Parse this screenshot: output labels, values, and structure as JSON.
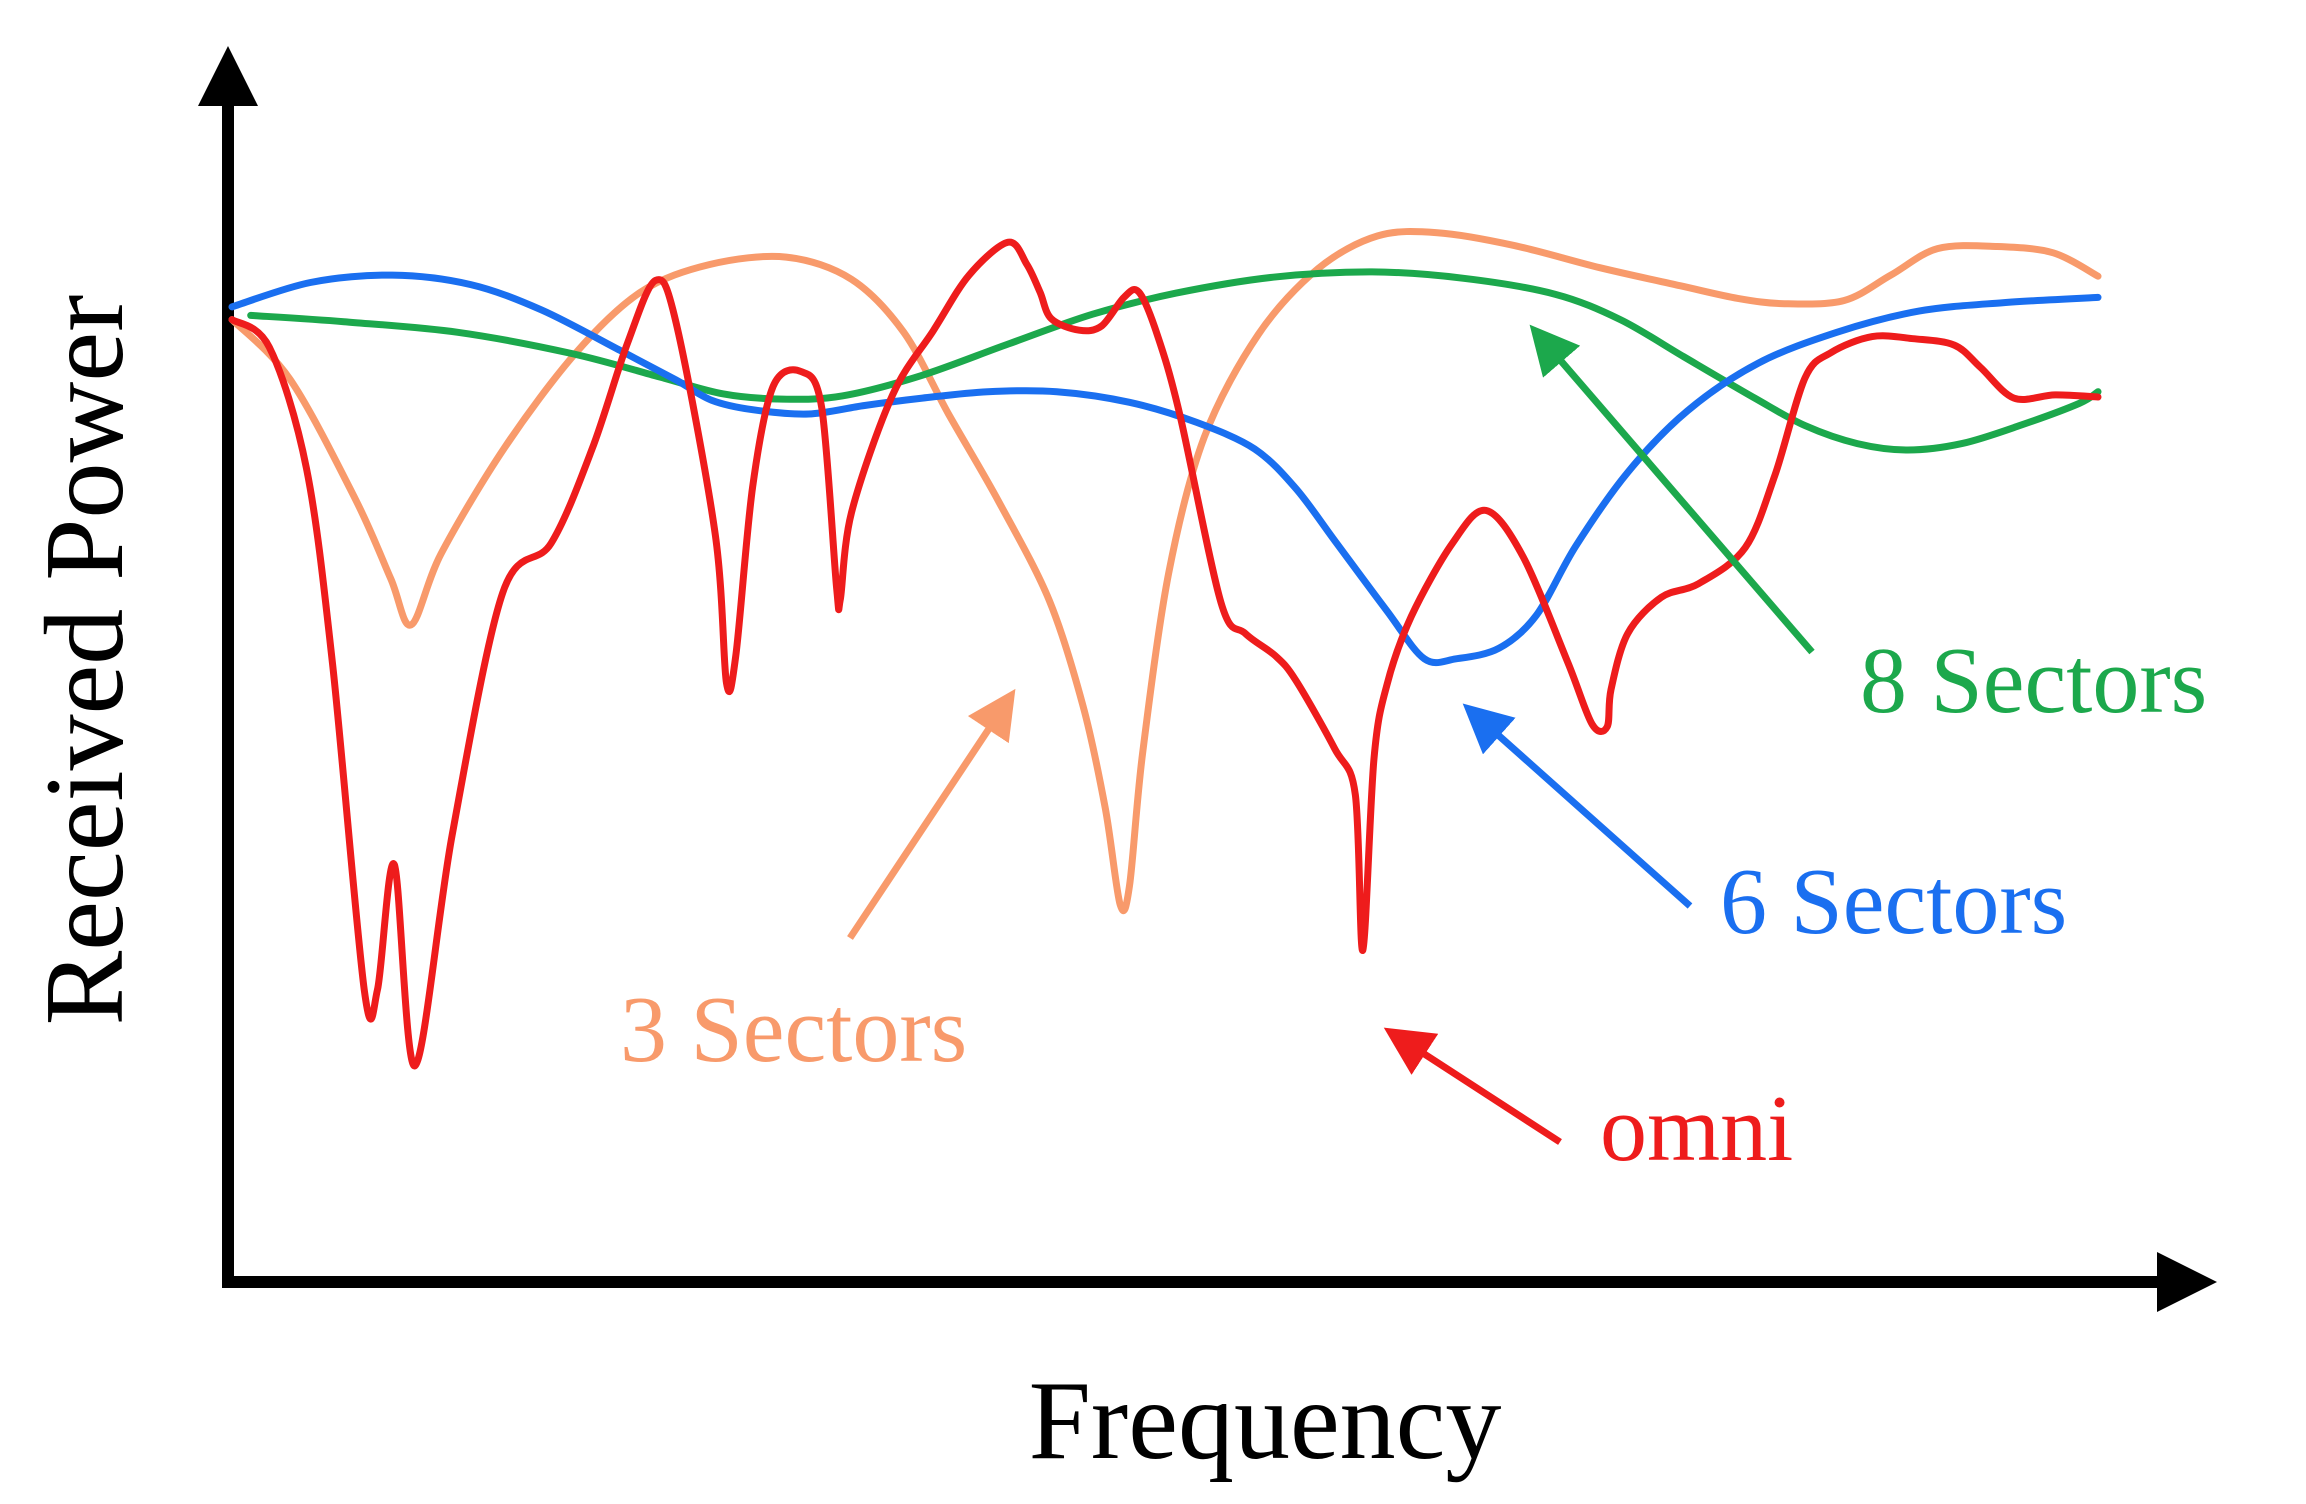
{
  "chart_data": {
    "type": "line",
    "title": "",
    "xlabel": "Frequency",
    "ylabel": "Received Power",
    "xlim": [
      0,
      100
    ],
    "ylim": [
      0,
      100
    ],
    "grid": false,
    "legend": "inline annotations with arrows",
    "series": [
      {
        "name": "omni",
        "color": "#ee1c1c",
        "points": [
          [
            0,
            87.3
          ],
          [
            2,
            84.7
          ],
          [
            4,
            73.2
          ],
          [
            5.4,
            54.6
          ],
          [
            7.1,
            23.9
          ],
          [
            7.8,
            24.1
          ],
          [
            8.7,
            35.9
          ],
          [
            9.8,
            16.9
          ],
          [
            11.8,
            38.7
          ],
          [
            14.5,
            61.5
          ],
          [
            17.1,
            66.2
          ],
          [
            19.3,
            75.1
          ],
          [
            21.2,
            85.1
          ],
          [
            22.7,
            91.0
          ],
          [
            23.8,
            87.0
          ],
          [
            25.9,
            67.0
          ],
          [
            26.5,
            53.0
          ],
          [
            27.0,
            55.6
          ],
          [
            27.9,
            71.5
          ],
          [
            29.0,
            81.0
          ],
          [
            30.5,
            82.4
          ],
          [
            31.6,
            79.0
          ],
          [
            32.4,
            62.0
          ],
          [
            32.6,
            60.9
          ],
          [
            33.2,
            69.1
          ],
          [
            35.4,
            80.2
          ],
          [
            37.6,
            86.3
          ],
          [
            39.5,
            91.5
          ],
          [
            41.6,
            94.6
          ],
          [
            42.6,
            92.5
          ],
          [
            43.3,
            89.9
          ],
          [
            43.9,
            87.4
          ],
          [
            45.4,
            86.3
          ],
          [
            46.6,
            86.7
          ],
          [
            47.8,
            89.4
          ],
          [
            48.6,
            89.9
          ],
          [
            49.6,
            85.8
          ],
          [
            50.8,
            78.3
          ],
          [
            53.0,
            60.6
          ],
          [
            54.3,
            57.7
          ],
          [
            55.9,
            55.6
          ],
          [
            57.0,
            53.3
          ],
          [
            59.1,
            46.8
          ],
          [
            60.2,
            42.5
          ],
          [
            60.6,
            27.8
          ],
          [
            61.2,
            45.9
          ],
          [
            61.9,
            52.9
          ],
          [
            63.2,
            59.3
          ],
          [
            65.4,
            66.2
          ],
          [
            67.2,
            69.3
          ],
          [
            69.2,
            64.9
          ],
          [
            71.6,
            54.9
          ],
          [
            72.9,
            49.1
          ],
          [
            73.7,
            48.9
          ],
          [
            73.9,
            52.4
          ],
          [
            74.8,
            57.7
          ],
          [
            76.6,
            61.1
          ],
          [
            78.6,
            62.4
          ],
          [
            81.1,
            65.8
          ],
          [
            82.7,
            72.7
          ],
          [
            84.3,
            81.8
          ],
          [
            85.7,
            84.2
          ],
          [
            87.9,
            85.7
          ],
          [
            90.1,
            85.5
          ],
          [
            92.3,
            84.9
          ],
          [
            93.7,
            82.8
          ],
          [
            95.5,
            79.9
          ],
          [
            97.7,
            80.2
          ],
          [
            100,
            80.0
          ]
        ]
      },
      {
        "name": "3 Sectors",
        "color": "#f89a6b",
        "points": [
          [
            0,
            87.3
          ],
          [
            3.1,
            81.7
          ],
          [
            6.6,
            70.4
          ],
          [
            8.5,
            62.9
          ],
          [
            9.6,
            58.5
          ],
          [
            11.2,
            65.2
          ],
          [
            14.6,
            75.2
          ],
          [
            18.4,
            84.1
          ],
          [
            21.9,
            89.9
          ],
          [
            25.6,
            92.5
          ],
          [
            29.7,
            93.2
          ],
          [
            33.2,
            91.1
          ],
          [
            36.0,
            86.1
          ],
          [
            38.4,
            78.4
          ],
          [
            41.1,
            70.1
          ],
          [
            43.8,
            60.8
          ],
          [
            45.6,
            50.9
          ],
          [
            46.8,
            41.2
          ],
          [
            47.6,
            32.1
          ],
          [
            48.1,
            33.9
          ],
          [
            48.8,
            46.4
          ],
          [
            50.2,
            63.4
          ],
          [
            52.1,
            76.2
          ],
          [
            55.0,
            85.9
          ],
          [
            58.2,
            92.1
          ],
          [
            61.4,
            95.2
          ],
          [
            64.6,
            95.5
          ],
          [
            68.7,
            94.3
          ],
          [
            73.3,
            92.2
          ],
          [
            77.6,
            90.5
          ],
          [
            80.7,
            89.3
          ],
          [
            83.2,
            88.8
          ],
          [
            86.4,
            89.1
          ],
          [
            88.9,
            91.5
          ],
          [
            91.4,
            94.0
          ],
          [
            94.6,
            94.2
          ],
          [
            97.6,
            93.6
          ],
          [
            100,
            91.4
          ]
        ]
      },
      {
        "name": "6 Sectors",
        "color": "#1a6ff0",
        "points": [
          [
            0,
            88.5
          ],
          [
            4.2,
            90.8
          ],
          [
            8.6,
            91.5
          ],
          [
            12.8,
            90.6
          ],
          [
            16.6,
            88.2
          ],
          [
            20.8,
            84.4
          ],
          [
            23.8,
            81.6
          ],
          [
            25.7,
            79.7
          ],
          [
            27.9,
            78.8
          ],
          [
            30.9,
            78.4
          ],
          [
            33.9,
            79.2
          ],
          [
            37.0,
            79.9
          ],
          [
            40.5,
            80.5
          ],
          [
            44.2,
            80.5
          ],
          [
            48.1,
            79.5
          ],
          [
            51.7,
            77.6
          ],
          [
            54.8,
            75.1
          ],
          [
            57.0,
            71.4
          ],
          [
            59.2,
            66.2
          ],
          [
            61.9,
            59.8
          ],
          [
            63.9,
            55.3
          ],
          [
            65.6,
            55.3
          ],
          [
            67.9,
            56.3
          ],
          [
            69.9,
            59.4
          ],
          [
            72.0,
            65.9
          ],
          [
            74.8,
            72.9
          ],
          [
            78.0,
            78.7
          ],
          [
            81.8,
            83.2
          ],
          [
            86.0,
            86.1
          ],
          [
            90.4,
            88.1
          ],
          [
            94.9,
            88.9
          ],
          [
            100,
            89.4
          ]
        ]
      },
      {
        "name": "8 Sectors",
        "color": "#1ca84c",
        "points": [
          [
            1.0,
            87.7
          ],
          [
            6.0,
            87.1
          ],
          [
            12.1,
            86.1
          ],
          [
            18.2,
            84.1
          ],
          [
            22.9,
            81.9
          ],
          [
            26.3,
            80.3
          ],
          [
            29.5,
            79.8
          ],
          [
            32.7,
            80.1
          ],
          [
            36.9,
            82.0
          ],
          [
            41.6,
            85.0
          ],
          [
            46.1,
            87.8
          ],
          [
            50.6,
            89.8
          ],
          [
            55.8,
            91.3
          ],
          [
            61.1,
            91.8
          ],
          [
            66.0,
            91.2
          ],
          [
            70.9,
            89.7
          ],
          [
            74.4,
            87.3
          ],
          [
            77.8,
            83.8
          ],
          [
            81.6,
            79.9
          ],
          [
            84.3,
            77.3
          ],
          [
            87.1,
            75.6
          ],
          [
            89.8,
            75.0
          ],
          [
            92.7,
            75.6
          ],
          [
            95.8,
            77.3
          ],
          [
            99.0,
            79.4
          ],
          [
            100,
            80.5
          ]
        ]
      }
    ],
    "annotations": [
      {
        "series": "omni",
        "text": "omni"
      },
      {
        "series": "3 Sectors",
        "text": "3 Sectors"
      },
      {
        "series": "6 Sectors",
        "text": "6 Sectors"
      },
      {
        "series": "8 Sectors",
        "text": "8 Sectors"
      }
    ]
  }
}
